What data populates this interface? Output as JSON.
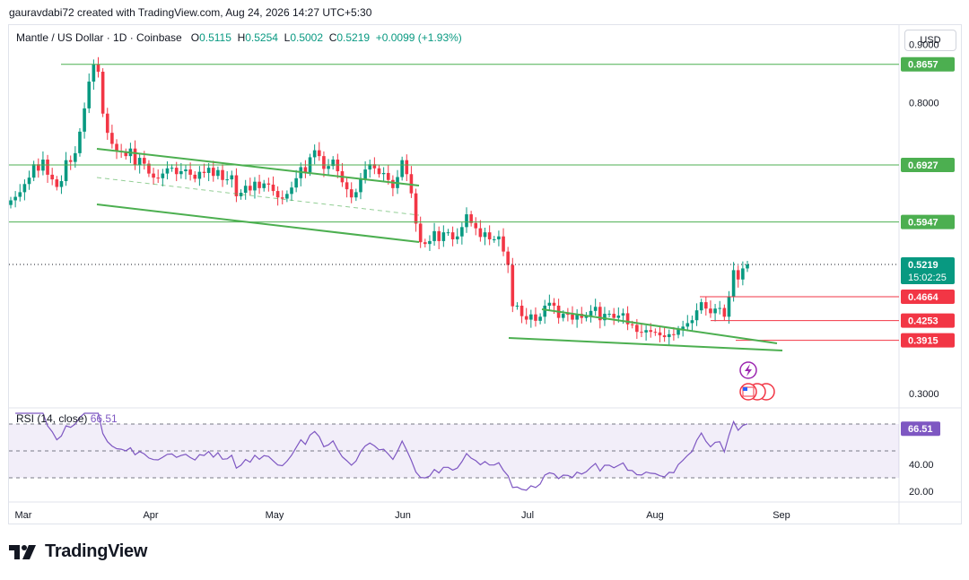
{
  "credit": "gauravdabi72 created with TradingView.com, Aug 24, 2026 14:27 UTC+5:30",
  "header": {
    "symbol": "Mantle / US Dollar · 1D · Coinbase",
    "o_label": "O",
    "o": "0.5115",
    "h_label": "H",
    "h": "0.5254",
    "l_label": "L",
    "l": "0.5002",
    "c_label": "C",
    "c": "0.5219",
    "change": "+0.0099 (+1.93%)"
  },
  "currency_button": "USD",
  "logo_text": "TradingView",
  "colors": {
    "up": "#089981",
    "down": "#f23645",
    "trendline": "#4caf50",
    "rsi": "#7e57c2"
  },
  "chart_data": {
    "type": "candlestick",
    "title": "Mantle / US Dollar · 1D · Coinbase",
    "ylim": [
      0.28,
      0.93
    ],
    "y_ticks": [
      "0.9000",
      "0.8000",
      "0.3000"
    ],
    "x_ticks": [
      "Mar",
      "Apr",
      "May",
      "Jun",
      "Jul",
      "Aug",
      "Sep"
    ],
    "price_labels": [
      {
        "text": "0.8657",
        "value": 0.8657,
        "kind": "green"
      },
      {
        "text": "0.6927",
        "value": 0.6927,
        "kind": "green"
      },
      {
        "text": "0.5947",
        "value": 0.5947,
        "kind": "green"
      },
      {
        "text": "0.5219",
        "value": 0.5219,
        "kind": "last",
        "countdown": "15:02:25"
      },
      {
        "text": "0.4664",
        "value": 0.4664,
        "kind": "red"
      },
      {
        "text": "0.4253",
        "value": 0.4253,
        "kind": "red"
      },
      {
        "text": "0.3915",
        "value": 0.3915,
        "kind": "red"
      }
    ],
    "closes": [
      0.632,
      0.638,
      0.646,
      0.66,
      0.671,
      0.694,
      0.683,
      0.702,
      0.676,
      0.668,
      0.655,
      0.665,
      0.701,
      0.698,
      0.713,
      0.75,
      0.79,
      0.836,
      0.866,
      0.853,
      0.781,
      0.748,
      0.729,
      0.717,
      0.715,
      0.708,
      0.721,
      0.692,
      0.705,
      0.695,
      0.678,
      0.671,
      0.67,
      0.678,
      0.687,
      0.688,
      0.677,
      0.682,
      0.685,
      0.676,
      0.669,
      0.681,
      0.679,
      0.688,
      0.674,
      0.684,
      0.667,
      0.668,
      0.675,
      0.639,
      0.645,
      0.657,
      0.649,
      0.664,
      0.653,
      0.661,
      0.659,
      0.648,
      0.637,
      0.635,
      0.643,
      0.654,
      0.67,
      0.689,
      0.68,
      0.706,
      0.718,
      0.708,
      0.686,
      0.691,
      0.702,
      0.682,
      0.663,
      0.651,
      0.637,
      0.646,
      0.669,
      0.685,
      0.694,
      0.687,
      0.677,
      0.679,
      0.667,
      0.653,
      0.672,
      0.701,
      0.677,
      0.644,
      0.592,
      0.56,
      0.557,
      0.562,
      0.579,
      0.562,
      0.577,
      0.577,
      0.565,
      0.57,
      0.586,
      0.608,
      0.593,
      0.584,
      0.569,
      0.577,
      0.565,
      0.565,
      0.57,
      0.544,
      0.521,
      0.45,
      0.451,
      0.433,
      0.427,
      0.436,
      0.425,
      0.432,
      0.451,
      0.456,
      0.451,
      0.43,
      0.437,
      0.436,
      0.427,
      0.437,
      0.43,
      0.434,
      0.442,
      0.449,
      0.426,
      0.437,
      0.437,
      0.43,
      0.434,
      0.438,
      0.419,
      0.418,
      0.406,
      0.405,
      0.409,
      0.406,
      0.405,
      0.4,
      0.397,
      0.402,
      0.401,
      0.41,
      0.415,
      0.421,
      0.426,
      0.443,
      0.457,
      0.446,
      0.438,
      0.446,
      0.447,
      0.432,
      0.466,
      0.512,
      0.496,
      0.515,
      0.522
    ],
    "trendlines": [
      {
        "x1": 0,
        "y1": 0.76,
        "x2": 0,
        "y2": 0.7
      },
      {
        "x1": 0,
        "y1": 0.72,
        "x2": 0,
        "y2": 0.6
      }
    ],
    "rsi": {
      "label": "RSI (14, close)",
      "value": "66.51",
      "ylim": [
        14,
        80
      ],
      "y_ticks": [
        "40.00",
        "20.00"
      ],
      "levels": [
        70,
        50,
        30
      ]
    }
  }
}
